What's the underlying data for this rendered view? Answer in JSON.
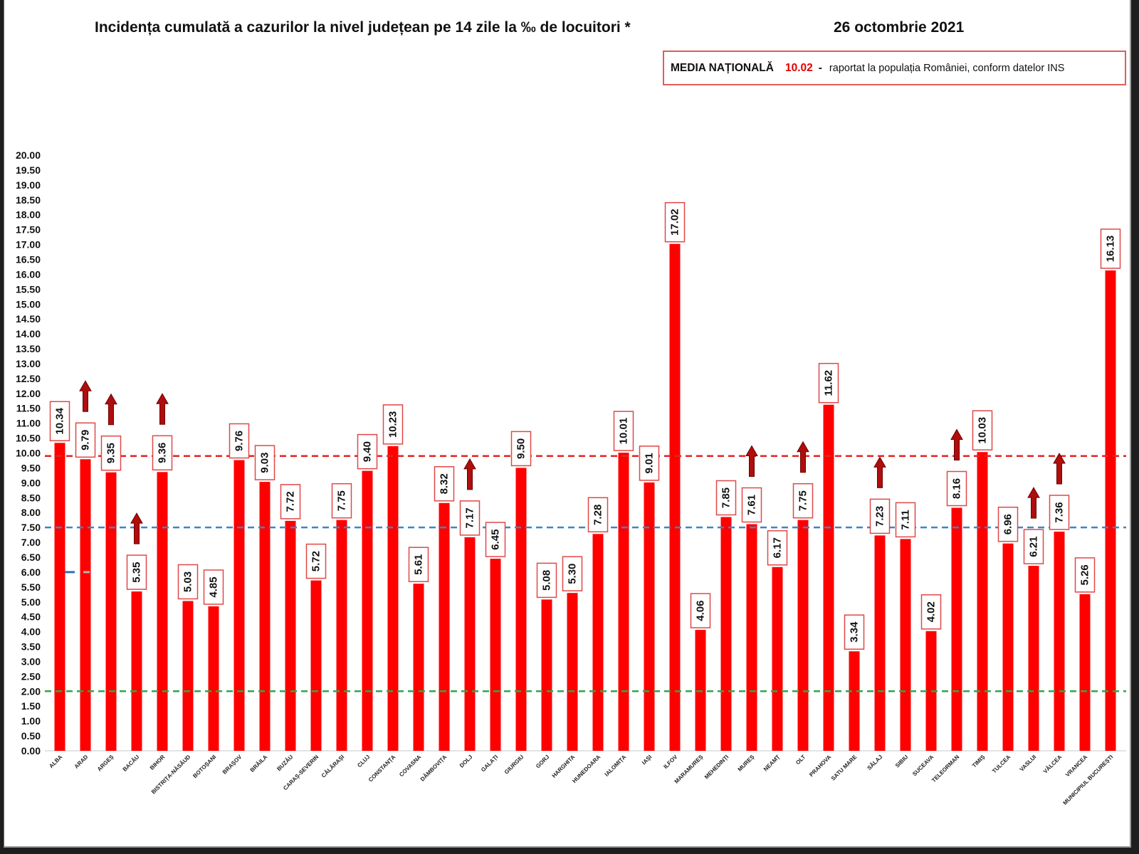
{
  "header": {
    "date": "26 octombrie 2021"
  },
  "national_box": {
    "label": "MEDIA NAȚIONALĂ",
    "value": "10.02",
    "separator": "-",
    "note": "raportat la populația României, conform datelor INS"
  },
  "colors": {
    "bar": "#ff0000",
    "value_label_border": "#e04848",
    "trend_arrow": "#b00d0d",
    "national_value": "#e00000",
    "box_border": "#e25c5c"
  },
  "chart_data": {
    "type": "bar",
    "title": "Incidența cumulată a cazurilor la nivel județean pe 14 zile la ‰ de locuitori *",
    "categories": [
      "ALBA",
      "ARAD",
      "ARGEȘ",
      "BACĂU",
      "BIHOR",
      "BISTRIȚA-NĂSĂUD",
      "BOTOȘANI",
      "BRAȘOV",
      "BRĂILA",
      "BUZĂU",
      "CARAȘ-SEVERIN",
      "CĂLĂRAȘI",
      "CLUJ",
      "CONSTANȚA",
      "COVASNA",
      "DÂMBOVIȚA",
      "DOLJ",
      "GALAȚI",
      "GIURGIU",
      "GORJ",
      "HARGHITA",
      "HUNEDOARA",
      "IALOMIȚA",
      "IAȘI",
      "ILFOV",
      "MARAMUREȘ",
      "MEHEDINȚI",
      "MUREȘ",
      "NEAMȚ",
      "OLT",
      "PRAHOVA",
      "SATU MARE",
      "SĂLAJ",
      "SIBIU",
      "SUCEAVA",
      "TELEORMAN",
      "TIMIȘ",
      "TULCEA",
      "VASLUI",
      "VÂLCEA",
      "VRANCEA",
      "MUNICIPIUL BUCUREȘTI"
    ],
    "values": [
      10.34,
      9.79,
      9.35,
      5.35,
      9.36,
      5.03,
      4.85,
      9.76,
      9.03,
      7.72,
      5.72,
      7.75,
      9.4,
      10.23,
      5.61,
      8.32,
      7.17,
      6.45,
      9.5,
      5.08,
      5.3,
      7.28,
      10.01,
      9.01,
      17.02,
      4.06,
      7.85,
      7.61,
      6.17,
      7.75,
      11.62,
      3.34,
      7.23,
      7.11,
      4.02,
      8.16,
      10.03,
      6.96,
      6.21,
      7.36,
      5.26,
      16.13
    ],
    "ylim": [
      0,
      20
    ],
    "ytick_step": 0.5,
    "reference_lines": [
      {
        "value": 9.9,
        "color": "#e52222",
        "dashed": true
      },
      {
        "value": 7.5,
        "color": "#3d85c6",
        "dashed": true
      },
      {
        "value": 2.0,
        "color": "#2ea84a",
        "dashed": true
      }
    ],
    "trend_up": [
      "ARAD",
      "ARGEȘ",
      "BACĂU",
      "BIHOR",
      "DOLJ",
      "MUREȘ",
      "OLT",
      "SĂLAJ",
      "TELEORMAN",
      "VASLUI",
      "VÂLCEA"
    ],
    "grid": false
  }
}
